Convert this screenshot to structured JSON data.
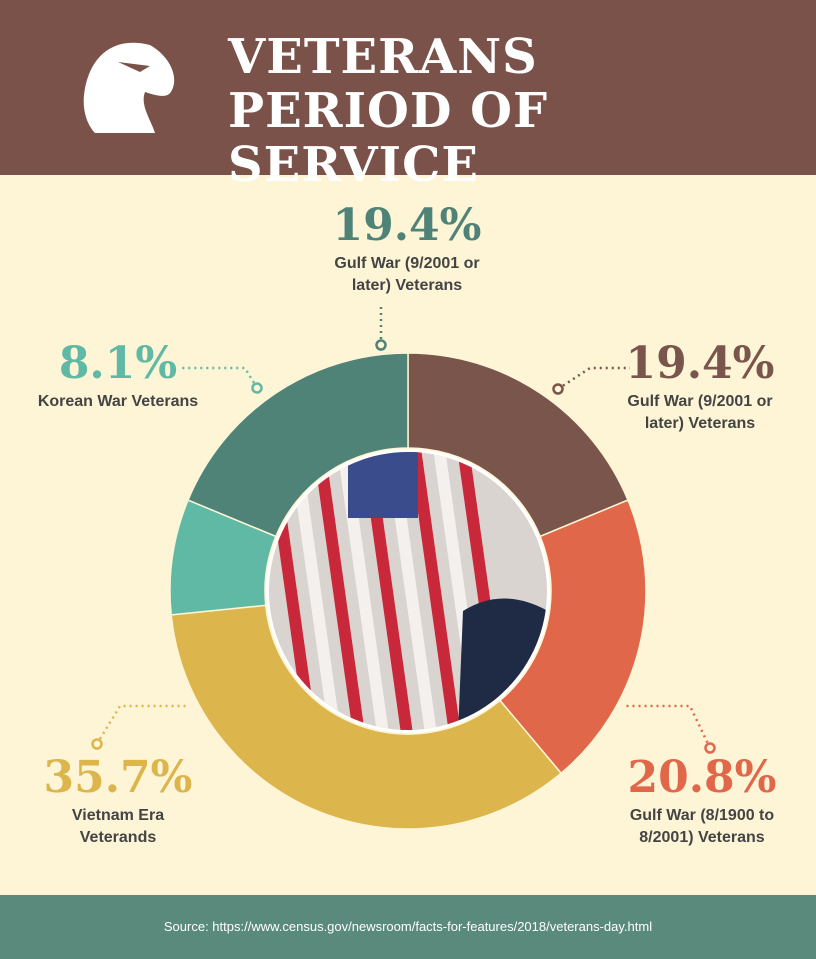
{
  "chart_data": {
    "type": "donut",
    "title": "VETERANS PERIOD OF SERVICE",
    "categories": [
      "Gulf War (9/2001 or later) Veterans",
      "Gulf War (8/1900 to 8/2001) Veterans",
      "Vietnam Era Veterands",
      "Korean War Veterans",
      "Gulf War (9/2001 or later) Veterans"
    ],
    "values": [
      19.4,
      20.8,
      35.7,
      8.1,
      19.4
    ],
    "value_labels": [
      "19.4%",
      "20.8%",
      "35.7%",
      "8.1%",
      "19.4%"
    ],
    "colors": [
      "#7a554c",
      "#e0674a",
      "#dcb64d",
      "#5fb9a5",
      "#4f8378"
    ],
    "source": "Source: https://www.census.gov/newsroom/facts-for-features/2018/veterans-day.html"
  }
}
